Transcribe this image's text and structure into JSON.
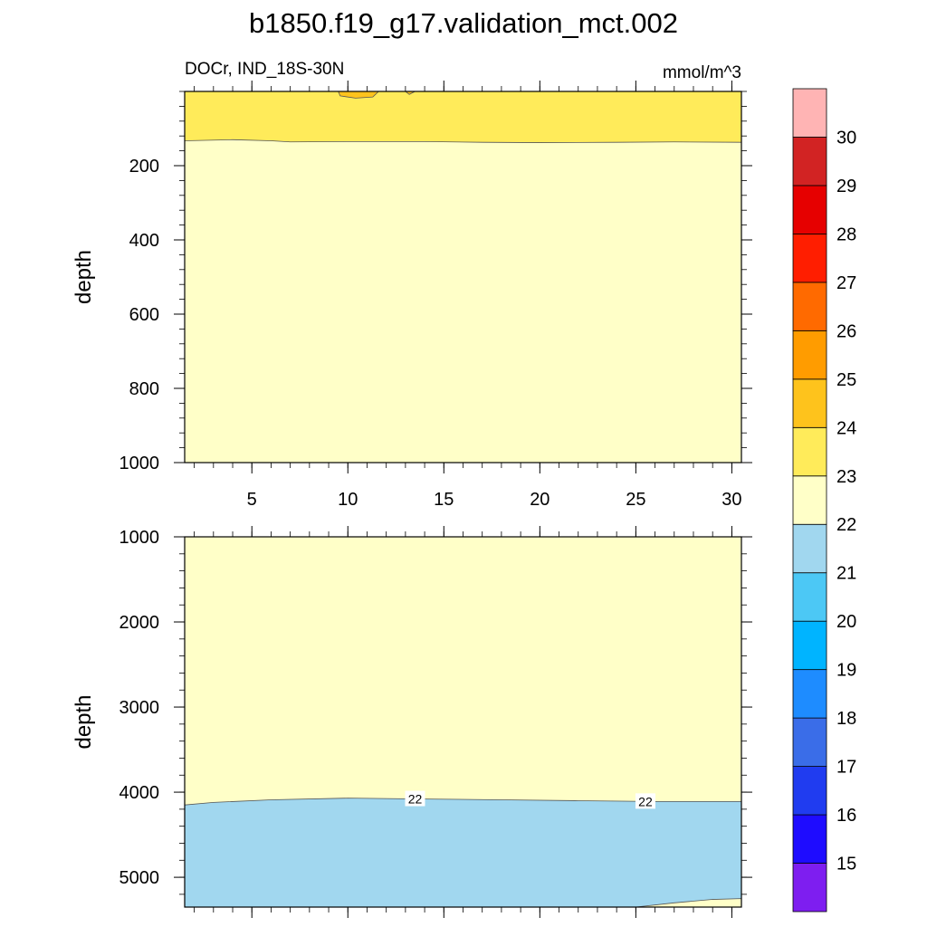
{
  "header": {
    "title": "b1850.f19_g17.validation_mct.002",
    "left_label": "DOCr, IND_18S-30N",
    "right_label": "mmol/m^3"
  },
  "colors": {
    "outline": "#000000",
    "contour_line": "#555555"
  },
  "chart_data": [
    {
      "type": "heatmap",
      "panel": "upper",
      "ylabel": "depth",
      "xlim": [
        1.5,
        30.5
      ],
      "ylim": [
        1000,
        0
      ],
      "x_ticks": [
        5,
        10,
        15,
        20,
        25,
        30
      ],
      "x_tick_labels": [
        "5",
        "10",
        "15",
        "20",
        "25",
        "30"
      ],
      "y_ticks": [
        200,
        400,
        600,
        800,
        1000
      ],
      "y_tick_labels": [
        "200",
        "400",
        "600",
        "800",
        "1000"
      ],
      "regions": [
        {
          "value_range": "22-23",
          "color": "#ffffc8",
          "boundary_top": [
            [
              1.5,
              1000
            ],
            [
              30.5,
              1000
            ],
            [
              30.5,
              0
            ],
            [
              1.5,
              0
            ]
          ]
        },
        {
          "value_range": "23-24",
          "color": "#ffeb5a",
          "boundary": [
            [
              1.5,
              0
            ],
            [
              1.5,
              133
            ],
            [
              4,
              130
            ],
            [
              6,
              133
            ],
            [
              7,
              136
            ],
            [
              10,
              135
            ],
            [
              14,
              135
            ],
            [
              17,
              137
            ],
            [
              20,
              138
            ],
            [
              24,
              137
            ],
            [
              27,
              136
            ],
            [
              30.5,
              137
            ],
            [
              30.5,
              0
            ]
          ]
        },
        {
          "value_range": "24-25",
          "color": "#fec31c",
          "boundary": [
            [
              9.5,
              0
            ],
            [
              9.6,
              12
            ],
            [
              10.4,
              18
            ],
            [
              11.3,
              15
            ],
            [
              11.6,
              0
            ]
          ]
        },
        {
          "value_range": "24-25",
          "color": "#fec31c",
          "boundary": [
            [
              13,
              0
            ],
            [
              13.2,
              8
            ],
            [
              13.5,
              0
            ]
          ]
        }
      ]
    },
    {
      "type": "heatmap",
      "panel": "lower",
      "ylabel": "depth",
      "xlim": [
        1.5,
        30.5
      ],
      "ylim": [
        5350,
        1000
      ],
      "y_ticks": [
        1000,
        2000,
        3000,
        4000,
        5000
      ],
      "y_tick_labels": [
        "1000",
        "2000",
        "3000",
        "4000",
        "5000"
      ],
      "regions": [
        {
          "value_range": "22-23",
          "color": "#ffffc8",
          "boundary_top": [
            [
              1.5,
              1000
            ],
            [
              30.5,
              1000
            ],
            [
              30.5,
              5350
            ],
            [
              1.5,
              5350
            ]
          ]
        },
        {
          "value_range": "21-22",
          "color": "#a1d7ef",
          "boundary": [
            [
              1.5,
              4150
            ],
            [
              3,
              4120
            ],
            [
              6,
              4090
            ],
            [
              10,
              4070
            ],
            [
              14,
              4080
            ],
            [
              18,
              4090
            ],
            [
              22,
              4100
            ],
            [
              26,
              4110
            ],
            [
              30.5,
              4110
            ],
            [
              30.5,
              5350
            ],
            [
              1.5,
              5350
            ]
          ]
        },
        {
          "value_range": "22-23",
          "color": "#ffffc8",
          "boundary": [
            [
              25,
              5350
            ],
            [
              27,
              5300
            ],
            [
              29,
              5260
            ],
            [
              30.5,
              5250
            ],
            [
              30.5,
              5350
            ]
          ]
        }
      ],
      "contour_labels": [
        {
          "text": "22",
          "x": 13.5,
          "y": 4090
        },
        {
          "text": "22",
          "x": 25.5,
          "y": 4120
        }
      ]
    }
  ],
  "colorbar": {
    "labels": [
      "15",
      "16",
      "17",
      "18",
      "19",
      "20",
      "21",
      "22",
      "23",
      "24",
      "25",
      "26",
      "27",
      "28",
      "29",
      "30"
    ],
    "colors": [
      "#7e1ef0",
      "#1e0cff",
      "#203cf0",
      "#3a6de8",
      "#1e8cff",
      "#00b4ff",
      "#4cc8f5",
      "#a1d7ef",
      "#ffffc8",
      "#ffeb5a",
      "#fec31c",
      "#ff9c00",
      "#ff6a00",
      "#ff1e00",
      "#e60000",
      "#d22323",
      "#ffb4b4"
    ]
  }
}
